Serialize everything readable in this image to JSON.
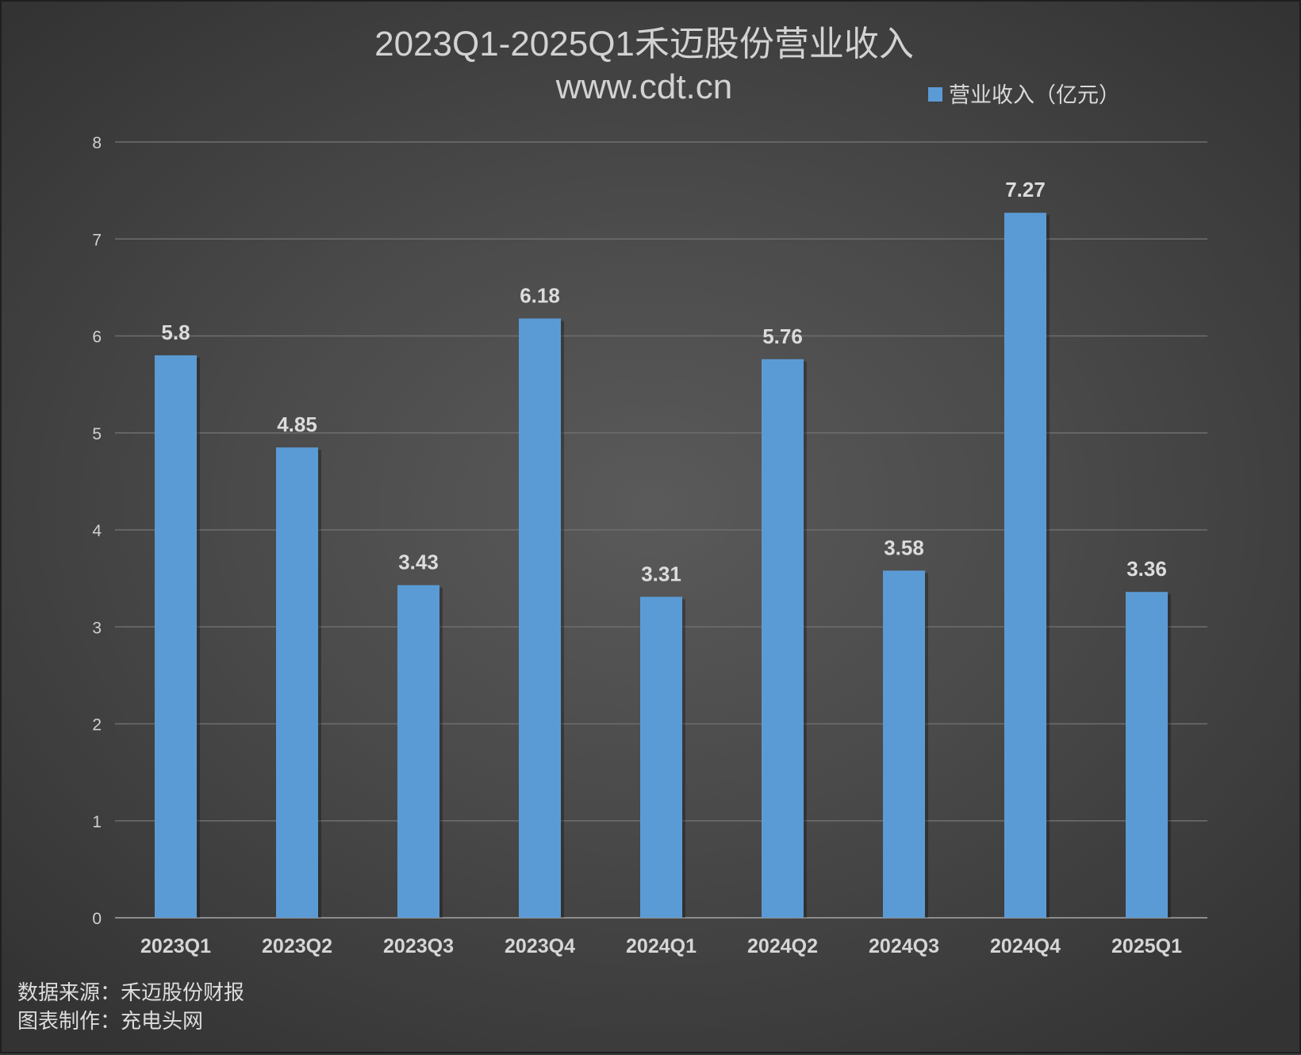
{
  "chart_data": {
    "type": "bar",
    "title": "2023Q1-2025Q1禾迈股份营业收入",
    "subtitle": "www.cdt.cn",
    "categories": [
      "2023Q1",
      "2023Q2",
      "2023Q3",
      "2023Q4",
      "2024Q1",
      "2024Q2",
      "2024Q3",
      "2024Q4",
      "2025Q1"
    ],
    "series": [
      {
        "name": "营业收入（亿元）",
        "values": [
          5.8,
          4.85,
          3.43,
          6.18,
          3.31,
          5.76,
          3.58,
          7.27,
          3.36
        ],
        "color": "#5b9bd5"
      }
    ],
    "xlabel": "",
    "ylabel": "",
    "ylim": [
      0,
      8
    ],
    "yticks": [
      0,
      1,
      2,
      3,
      4,
      5,
      6,
      7,
      8
    ],
    "grid": true,
    "legend_position": "top-right",
    "data_labels": true
  },
  "footnotes": {
    "source": "数据来源：禾迈股份财报",
    "maker": "图表制作：充电头网"
  },
  "colors": {
    "background": "#4a4a4a",
    "bar": "#5b9bd5",
    "gridline": "#6e6e6e",
    "text": "#d9d9d9"
  }
}
